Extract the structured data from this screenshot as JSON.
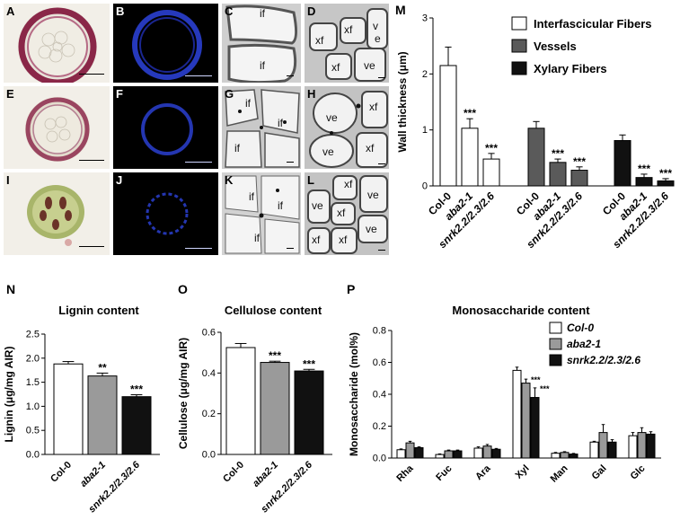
{
  "panel_letters": {
    "A": "A",
    "B": "B",
    "C": "C",
    "D": "D",
    "E": "E",
    "F": "F",
    "G": "G",
    "H": "H",
    "I": "I",
    "J": "J",
    "K": "K",
    "L": "L",
    "M": "M",
    "N": "N",
    "O": "O",
    "P": "P"
  },
  "micro_labels": {
    "C": [
      "if",
      "if"
    ],
    "D": [
      "xf",
      "xf",
      "v",
      "e",
      "xf",
      "ve"
    ],
    "G": [
      "if",
      "if",
      "if"
    ],
    "H": [
      "ve",
      "xf",
      "ve",
      "xf"
    ],
    "K": [
      "if",
      "if",
      "if"
    ],
    "L": [
      "xf",
      "ve",
      "xf",
      "ve",
      "xf",
      "ve",
      "xf"
    ]
  },
  "colors": {
    "white_bar": "#ffffff",
    "grey_bar": "#5a5a5a",
    "light_grey_bar": "#9a9a9a",
    "black_bar": "#111111",
    "stem_red": "#8a2748",
    "fluor_blue": "#2a3fd0"
  },
  "chart_data": [
    {
      "id": "M",
      "type": "bar",
      "title": "",
      "ylabel": "Wall thickness (μm)",
      "ylim": [
        0,
        3
      ],
      "yticks": [
        "0",
        "1",
        "2",
        "3"
      ],
      "groups": [
        "Interfascicular Fibers",
        "Vessels",
        "Xylary Fibers"
      ],
      "categories": [
        "Col-0",
        "aba2-1",
        "snrk2.2/2.3/2.6"
      ],
      "series": [
        {
          "name": "Interfascicular Fibers",
          "values": [
            2.15,
            1.03,
            0.48
          ],
          "errors": [
            0.33,
            0.17,
            0.1
          ],
          "sig": [
            "",
            "***",
            "***"
          ]
        },
        {
          "name": "Vessels",
          "values": [
            1.03,
            0.42,
            0.28
          ],
          "errors": [
            0.12,
            0.06,
            0.06
          ],
          "sig": [
            "",
            "***",
            "***"
          ]
        },
        {
          "name": "Xylary Fibers",
          "values": [
            0.81,
            0.15,
            0.09
          ],
          "errors": [
            0.1,
            0.06,
            0.04
          ],
          "sig": [
            "",
            "***",
            "***"
          ]
        }
      ]
    },
    {
      "id": "N",
      "type": "bar",
      "title": "Lignin content",
      "ylabel": "Lignin (μg/mg AIR)",
      "ylim": [
        0,
        2.5
      ],
      "yticks": [
        "0.0",
        "0.5",
        "1.0",
        "1.5",
        "2.0",
        "2.5"
      ],
      "categories": [
        "Col-0",
        "aba2-1",
        "snrk2.2/2.3/2.6"
      ],
      "values": [
        1.88,
        1.63,
        1.2
      ],
      "errors": [
        0.05,
        0.06,
        0.04
      ],
      "sig": [
        "",
        "**",
        "***"
      ]
    },
    {
      "id": "O",
      "type": "bar",
      "title": "Cellulose content",
      "ylabel": "Cellulose (μg/mg AIR)",
      "ylim": [
        0,
        0.6
      ],
      "yticks": [
        "0.0",
        "0.2",
        "0.4",
        "0.6"
      ],
      "categories": [
        "Col-0",
        "aba2-1",
        "snrk2.2/2.3/2.6"
      ],
      "values": [
        0.525,
        0.452,
        0.41
      ],
      "errors": [
        0.02,
        0.006,
        0.008
      ],
      "sig": [
        "",
        "***",
        "***"
      ]
    },
    {
      "id": "P",
      "type": "bar",
      "title": "Monosaccharide content",
      "ylabel": "Monosaccharide (mol%)",
      "ylim": [
        0,
        0.8
      ],
      "yticks": [
        "0.0",
        "0.2",
        "0.4",
        "0.6",
        "0.8"
      ],
      "categories": [
        "Rha",
        "Fuc",
        "Ara",
        "Xyl",
        "Man",
        "Gal",
        "Glc"
      ],
      "legend_position": "top-right",
      "series": [
        {
          "name": "Col-0",
          "values": [
            0.052,
            0.022,
            0.062,
            0.55,
            0.03,
            0.1,
            0.14
          ],
          "errors": [
            0.005,
            0.004,
            0.008,
            0.02,
            0.005,
            0.005,
            0.02
          ]
        },
        {
          "name": "aba2-1",
          "values": [
            0.095,
            0.045,
            0.075,
            0.47,
            0.035,
            0.16,
            0.16
          ],
          "errors": [
            0.01,
            0.005,
            0.01,
            0.025,
            0.005,
            0.05,
            0.03
          ]
        },
        {
          "name": "snrk2.2/2.3/2.6",
          "values": [
            0.065,
            0.045,
            0.055,
            0.38,
            0.025,
            0.1,
            0.15
          ],
          "errors": [
            0.005,
            0.005,
            0.005,
            0.06,
            0.004,
            0.015,
            0.015
          ]
        }
      ],
      "sig_category": "Xyl",
      "sig": [
        "",
        "***",
        "***"
      ]
    }
  ]
}
